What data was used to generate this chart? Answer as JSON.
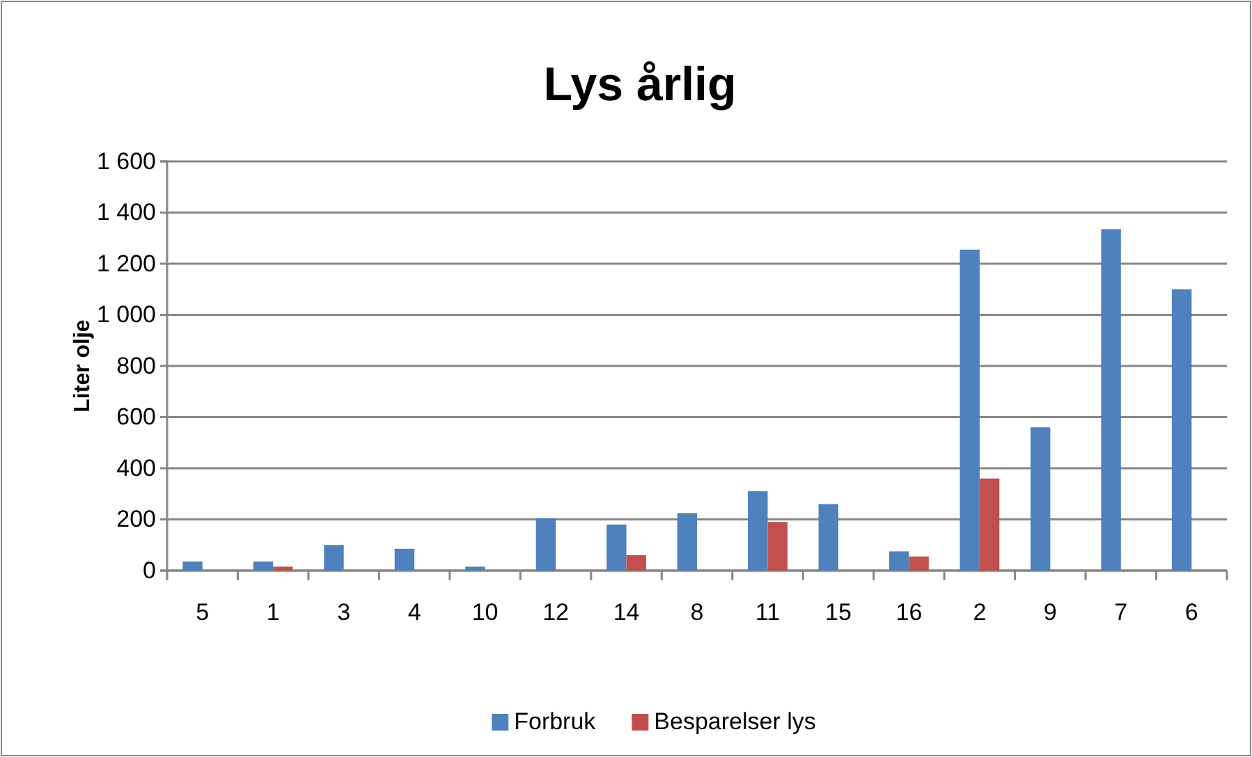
{
  "chart_data": {
    "type": "bar",
    "title": "Lys årlig",
    "ylabel": "Liter olje",
    "categories": [
      "5",
      "1",
      "3",
      "4",
      "10",
      "12",
      "14",
      "8",
      "11",
      "15",
      "16",
      "2",
      "9",
      "7",
      "6"
    ],
    "series": [
      {
        "name": "Forbruk",
        "color": "#4f81bd",
        "values": [
          35,
          35,
          100,
          85,
          15,
          205,
          180,
          225,
          310,
          260,
          75,
          1255,
          560,
          1335,
          1100
        ]
      },
      {
        "name": "Besparelser lys",
        "color": "#c0504d",
        "values": [
          null,
          15,
          null,
          null,
          null,
          null,
          60,
          null,
          190,
          null,
          55,
          360,
          null,
          null,
          null
        ]
      }
    ],
    "ylim": [
      0,
      1600
    ],
    "yticks": [
      0,
      200,
      400,
      600,
      800,
      {
        "value": 1000,
        "label": "1 000"
      },
      {
        "value": 1200,
        "label": "1 200"
      },
      {
        "value": 1400,
        "label": "1 400"
      },
      {
        "value": 1600,
        "label": "1 600"
      }
    ],
    "grid": "y",
    "legend": "bottom"
  }
}
